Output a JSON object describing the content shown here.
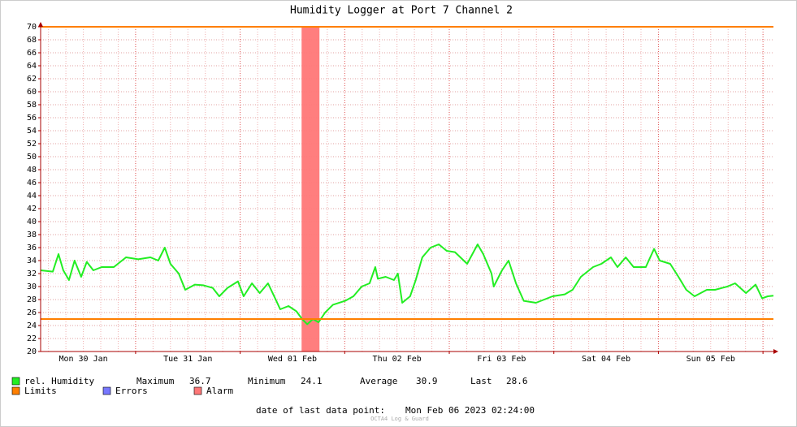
{
  "chart_data": {
    "type": "line",
    "title": "Humidity Logger at Port 7 Channel 2",
    "xlim": [
      2.2,
      170.4
    ],
    "ylim": [
      20,
      70
    ],
    "yticks": [
      20,
      22,
      24,
      26,
      28,
      30,
      32,
      34,
      36,
      38,
      40,
      42,
      44,
      46,
      48,
      50,
      52,
      54,
      56,
      58,
      60,
      62,
      64,
      66,
      68,
      70
    ],
    "xticks": [
      {
        "value": 12,
        "label": "Mon 30 Jan"
      },
      {
        "value": 36,
        "label": "Tue 31 Jan"
      },
      {
        "value": 60,
        "label": "Wed 01 Feb"
      },
      {
        "value": 84,
        "label": "Thu 02 Feb"
      },
      {
        "value": 108,
        "label": "Fri 03 Feb"
      },
      {
        "value": 132,
        "label": "Sat 04 Feb"
      },
      {
        "value": 156,
        "label": "Sun 05 Feb"
      }
    ],
    "xgrid_major": [
      24,
      48,
      72,
      96,
      120,
      144,
      168
    ],
    "xgrid_minor": [
      4,
      8,
      12,
      16,
      20,
      28,
      32,
      36,
      40,
      44,
      52,
      56,
      60,
      64,
      68,
      76,
      80,
      84,
      88,
      92,
      100,
      104,
      108,
      112,
      116,
      124,
      128,
      132,
      136,
      140,
      148,
      152,
      156,
      160,
      164
    ],
    "grid": true,
    "series": [
      {
        "name": "rel. Humidity",
        "color": "#22ee22",
        "x": [
          2.2,
          5.0,
          6.3,
          7.4,
          8.7,
          10.0,
          11.5,
          12.8,
          14.3,
          16.2,
          19.0,
          21.8,
          24.6,
          27.4,
          29.2,
          30.7,
          32.0,
          33.9,
          35.4,
          37.6,
          39.5,
          41.7,
          43.2,
          45.1,
          47.5,
          48.8,
          50.7,
          52.5,
          54.4,
          56.3,
          57.2,
          59.1,
          60.9,
          62.2,
          63.4,
          64.7,
          66.0,
          67.5,
          69.3,
          72.1,
          74.0,
          75.9,
          77.7,
          79.0,
          79.6,
          81.4,
          83.3,
          84.2,
          85.2,
          87.0,
          88.3,
          89.8,
          91.7,
          93.6,
          95.4,
          97.3,
          100.1,
          102.5,
          103.8,
          105.7,
          106.2,
          108.1,
          109.6,
          111.3,
          113.1,
          115.9,
          117.8,
          119.7,
          122.5,
          124.3,
          126.2,
          129.0,
          130.9,
          133.1,
          134.6,
          136.5,
          138.3,
          141.1,
          143.0,
          144.3,
          146.7,
          148.6,
          150.4,
          152.3,
          155.1,
          157.0,
          159.8,
          161.6,
          164.1,
          166.3,
          167.8,
          169.1,
          170.4
        ],
        "values": [
          32.5,
          32.3,
          35,
          32.5,
          31,
          34,
          31.5,
          33.8,
          32.5,
          33,
          33,
          34.5,
          34.2,
          34.5,
          34,
          36,
          33.5,
          32,
          29.5,
          30.3,
          30.2,
          29.8,
          28.5,
          29.8,
          30.8,
          28.5,
          30.5,
          29,
          30.5,
          27.8,
          26.5,
          27,
          26.2,
          25,
          24.2,
          25,
          24.5,
          26,
          27.2,
          27.8,
          28.5,
          30,
          30.5,
          33,
          31.2,
          31.5,
          31,
          32,
          27.5,
          28.5,
          31,
          34.5,
          36,
          36.5,
          35.5,
          35.3,
          33.5,
          36.5,
          35,
          32,
          30,
          32.5,
          34,
          30.5,
          27.8,
          27.5,
          28,
          28.5,
          28.8,
          29.5,
          31.5,
          33,
          33.5,
          34.5,
          33,
          34.5,
          33,
          33,
          35.8,
          34,
          33.5,
          31.5,
          29.5,
          28.5,
          29.5,
          29.5,
          30,
          30.5,
          29,
          30.3,
          28.2,
          28.5,
          28.6
        ]
      }
    ],
    "limits": {
      "name": "Limits",
      "color": "#ff7f00",
      "values": [
        70,
        25
      ]
    },
    "errors": {
      "name": "Errors",
      "color": "#7777ff"
    },
    "alarm": {
      "name": "Alarm",
      "color": "#ff7777",
      "ranges": [
        [
          62.1,
          66.2
        ]
      ]
    },
    "stats": [
      {
        "label": "Maximum",
        "value": 36.7
      },
      {
        "label": "Minimum",
        "value": 24.1
      },
      {
        "label": "Average",
        "value": 30.9
      },
      {
        "label": "Last",
        "value": 28.6
      }
    ],
    "footer": {
      "label": "date of last data point:",
      "value": "Mon Feb 06 2023 02:24:00"
    },
    "watermark": "OCTA4 Log & Guard"
  }
}
